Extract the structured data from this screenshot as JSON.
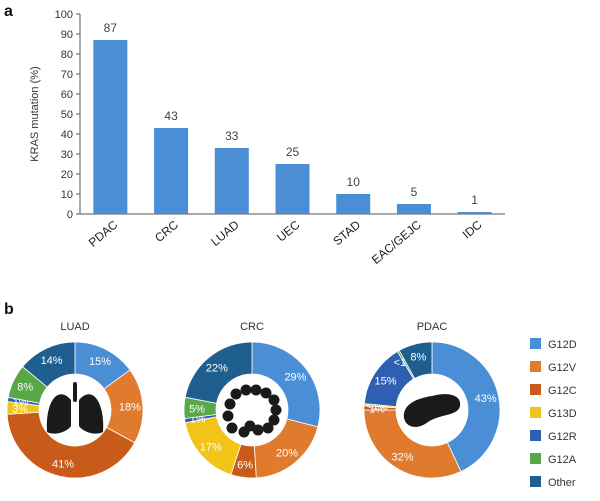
{
  "panel_a_letter": "a",
  "panel_b_letter": "b",
  "chart_data": [
    {
      "type": "bar",
      "ylabel": "KRAS mutation (%)",
      "xlabel": "",
      "ylim": [
        0,
        100
      ],
      "yticks": [
        0,
        10,
        20,
        30,
        40,
        50,
        60,
        70,
        80,
        90,
        100
      ],
      "categories": [
        "PDAC",
        "CRC",
        "LUAD",
        "UEC",
        "STAD",
        "EAC/GEJC",
        "IDC"
      ],
      "values": [
        87,
        43,
        33,
        25,
        10,
        5,
        1
      ],
      "value_labels": [
        "87",
        "43",
        "33",
        "25",
        "10",
        "5",
        "1"
      ],
      "bar_color": "#4a8fd6",
      "grid": false
    },
    {
      "type": "pie",
      "variant": "donut",
      "legend": {
        "placement": "right",
        "items": [
          {
            "name": "G12D",
            "color": "#4a8fd6"
          },
          {
            "name": "G12V",
            "color": "#e07b2e"
          },
          {
            "name": "G12C",
            "color": "#c85a1a"
          },
          {
            "name": "G13D",
            "color": "#f0c419"
          },
          {
            "name": "G12R",
            "color": "#2f5fb0"
          },
          {
            "name": "G12A",
            "color": "#58a84a"
          },
          {
            "name": "Other",
            "color": "#1f5f8f"
          }
        ]
      },
      "charts": [
        {
          "title": "LUAD",
          "icon": "lungs-icon",
          "slices": [
            {
              "name": "G12D",
              "value": 15,
              "label": "15%"
            },
            {
              "name": "G12V",
              "value": 18,
              "label": "18%"
            },
            {
              "name": "G12C",
              "value": 41,
              "label": "41%"
            },
            {
              "name": "G13D",
              "value": 3,
              "label": "3%"
            },
            {
              "name": "G12R",
              "value": 1,
              "label": "1%"
            },
            {
              "name": "G12A",
              "value": 8,
              "label": "8%"
            },
            {
              "name": "Other",
              "value": 14,
              "label": "14%"
            }
          ]
        },
        {
          "title": "CRC",
          "icon": "colon-icon",
          "slices": [
            {
              "name": "G12D",
              "value": 29,
              "label": "29%"
            },
            {
              "name": "G12V",
              "value": 20,
              "label": "20%"
            },
            {
              "name": "G12C",
              "value": 6,
              "label": "6%"
            },
            {
              "name": "G13D",
              "value": 17,
              "label": "17%"
            },
            {
              "name": "G12R",
              "value": 1,
              "label": "1%"
            },
            {
              "name": "G12A",
              "value": 5,
              "label": "5%"
            },
            {
              "name": "Other",
              "value": 22,
              "label": "22%"
            }
          ]
        },
        {
          "title": "PDAC",
          "icon": "pancreas-icon",
          "slices": [
            {
              "name": "G12D",
              "value": 43,
              "label": "43%"
            },
            {
              "name": "G12V",
              "value": 32,
              "label": "32%"
            },
            {
              "name": "G12C",
              "value": 1,
              "label": "1%"
            },
            {
              "name": "G13D",
              "value": 0.5,
              "label": "<1%"
            },
            {
              "name": "G12R",
              "value": 15,
              "label": "15%"
            },
            {
              "name": "G12A",
              "value": 0.5,
              "label": "<1%"
            },
            {
              "name": "Other",
              "value": 8,
              "label": "8%"
            }
          ]
        }
      ]
    }
  ]
}
